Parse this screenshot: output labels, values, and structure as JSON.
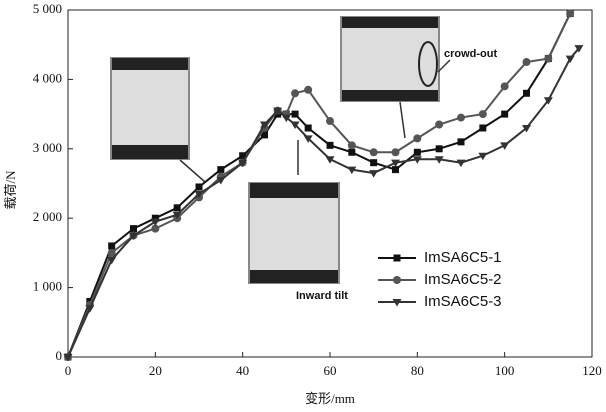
{
  "chart_data": {
    "type": "line",
    "x_label": "变形/mm",
    "y_label": "载荷/N",
    "annotations": [
      "crowd-out",
      "Inward tilt"
    ],
    "x": [
      0,
      5,
      10,
      15,
      20,
      25,
      30,
      35,
      40,
      45,
      48,
      50,
      52,
      55,
      60,
      65,
      70,
      75,
      80,
      85,
      90,
      95,
      100,
      105,
      110,
      115,
      117
    ],
    "series": [
      {
        "name": "ImSA6C5-1",
        "color": "#111111",
        "marker": "square",
        "values": [
          0,
          800,
          1600,
          1850,
          2000,
          2150,
          2450,
          2700,
          2900,
          3200,
          3500,
          3500,
          3500,
          3300,
          3050,
          2950,
          2800,
          2700,
          2950,
          3000,
          3100,
          3300,
          3500,
          3800,
          4300,
          4950,
          null
        ]
      },
      {
        "name": "ImSA6C5-2",
        "color": "#555555",
        "marker": "circle",
        "values": [
          0,
          750,
          1500,
          1750,
          1850,
          2000,
          2300,
          2600,
          2800,
          3300,
          3550,
          3500,
          3800,
          3850,
          3400,
          3050,
          2950,
          2950,
          3150,
          3350,
          3450,
          3500,
          3900,
          4250,
          4300,
          4950,
          null
        ]
      },
      {
        "name": "ImSA6C5-3",
        "color": "#333333",
        "marker": "triangle",
        "values": [
          0,
          700,
          1400,
          1750,
          1950,
          2050,
          2350,
          2550,
          2800,
          3350,
          3550,
          3450,
          3350,
          3150,
          2850,
          2700,
          2650,
          2800,
          2850,
          2850,
          2800,
          2900,
          3050,
          3300,
          3700,
          4300,
          4450
        ]
      }
    ],
    "xlim": [
      0,
      120
    ],
    "xticks": [
      0,
      20,
      40,
      60,
      80,
      100,
      120
    ],
    "ylim": [
      0,
      5000
    ],
    "yticks": [
      0,
      {
        "value": 1000,
        "label": "1 000"
      },
      {
        "value": 2000,
        "label": "2 000"
      },
      {
        "value": 3000,
        "label": "3 000"
      },
      {
        "value": 4000,
        "label": "4 000"
      },
      {
        "value": 5000,
        "label": "5 000"
      }
    ],
    "grid": false,
    "legend": "right"
  }
}
